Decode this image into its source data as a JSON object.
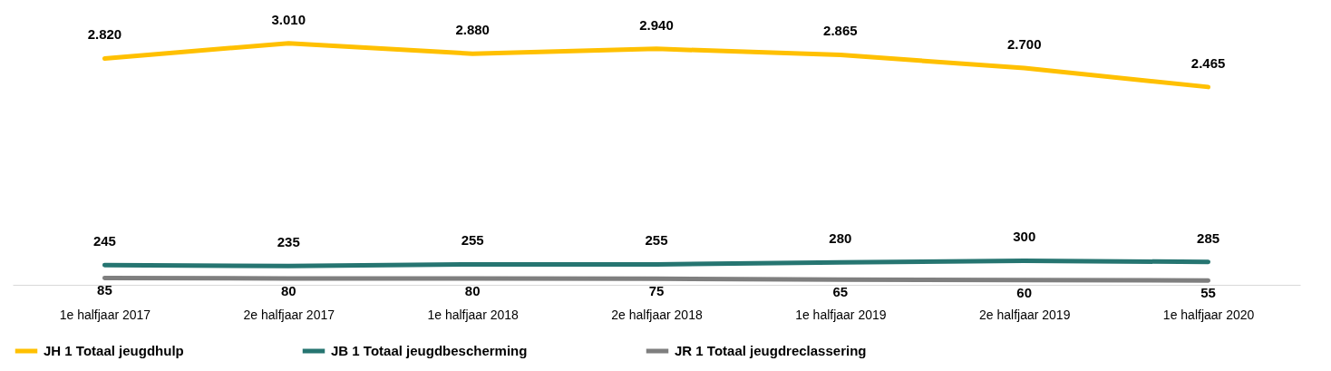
{
  "chart_data": {
    "type": "line",
    "categories": [
      "1e halfjaar 2017",
      "2e halfjaar 2017",
      "1e halfjaar 2018",
      "2e halfjaar 2018",
      "1e halfjaar 2019",
      "2e halfjaar 2019",
      "1e halfjaar 2020"
    ],
    "series": [
      {
        "name": "JH 1 Totaal jeugdhulp",
        "color": "#ffc000",
        "values": [
          2820,
          3010,
          2880,
          2940,
          2865,
          2700,
          2465
        ],
        "value_labels": [
          "2.820",
          "3.010",
          "2.880",
          "2.940",
          "2.865",
          "2.700",
          "2.465"
        ]
      },
      {
        "name": "JB 1 Totaal jeugdbescherming",
        "color": "#267571",
        "values": [
          245,
          235,
          255,
          255,
          280,
          300,
          285
        ],
        "value_labels": [
          "245",
          "235",
          "255",
          "255",
          "280",
          "300",
          "285"
        ]
      },
      {
        "name": "JR 1 Totaal jeugdreclassering",
        "color": "#7f7f7f",
        "values": [
          85,
          80,
          80,
          75,
          65,
          60,
          55
        ],
        "value_labels": [
          "85",
          "80",
          "80",
          "75",
          "65",
          "60",
          "55"
        ]
      }
    ],
    "legend": "bottom",
    "grid": false,
    "marker": "none",
    "line_style": "solid"
  }
}
